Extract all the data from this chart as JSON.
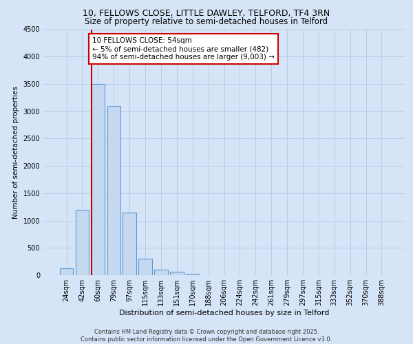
{
  "title": "10, FELLOWS CLOSE, LITTLE DAWLEY, TELFORD, TF4 3RN",
  "subtitle": "Size of property relative to semi-detached houses in Telford",
  "xlabel": "Distribution of semi-detached houses by size in Telford",
  "ylabel": "Number of semi-detached properties",
  "categories": [
    "24sqm",
    "42sqm",
    "60sqm",
    "79sqm",
    "97sqm",
    "115sqm",
    "133sqm",
    "151sqm",
    "170sqm",
    "188sqm",
    "206sqm",
    "224sqm",
    "242sqm",
    "261sqm",
    "279sqm",
    "297sqm",
    "315sqm",
    "333sqm",
    "352sqm",
    "370sqm",
    "388sqm"
  ],
  "bar_values": [
    120,
    1200,
    3500,
    3100,
    1150,
    300,
    100,
    60,
    30,
    5,
    2,
    0,
    0,
    0,
    0,
    0,
    0,
    0,
    0,
    0,
    0
  ],
  "bar_color": "#c5d8f0",
  "bar_edgecolor": "#5b9bd5",
  "grid_color": "#b8cce4",
  "background_color": "#d6e4f7",
  "plot_bg_color": "#d6e4f7",
  "vline_x": 2.0,
  "vline_color": "#cc0000",
  "annotation_text": "10 FELLOWS CLOSE: 54sqm\n← 5% of semi-detached houses are smaller (482)\n94% of semi-detached houses are larger (9,003) →",
  "annotation_box_color": "#ffffff",
  "annotation_border_color": "#cc0000",
  "ylim": [
    0,
    4500
  ],
  "yticks": [
    0,
    500,
    1000,
    1500,
    2000,
    2500,
    3000,
    3500,
    4000,
    4500
  ],
  "footer_text": "Contains HM Land Registry data © Crown copyright and database right 2025.\nContains public sector information licensed under the Open Government Licence v3.0.",
  "title_fontsize": 9,
  "subtitle_fontsize": 8.5,
  "xlabel_fontsize": 8,
  "ylabel_fontsize": 7.5,
  "tick_fontsize": 7,
  "annotation_fontsize": 7.5,
  "footer_fontsize": 6
}
